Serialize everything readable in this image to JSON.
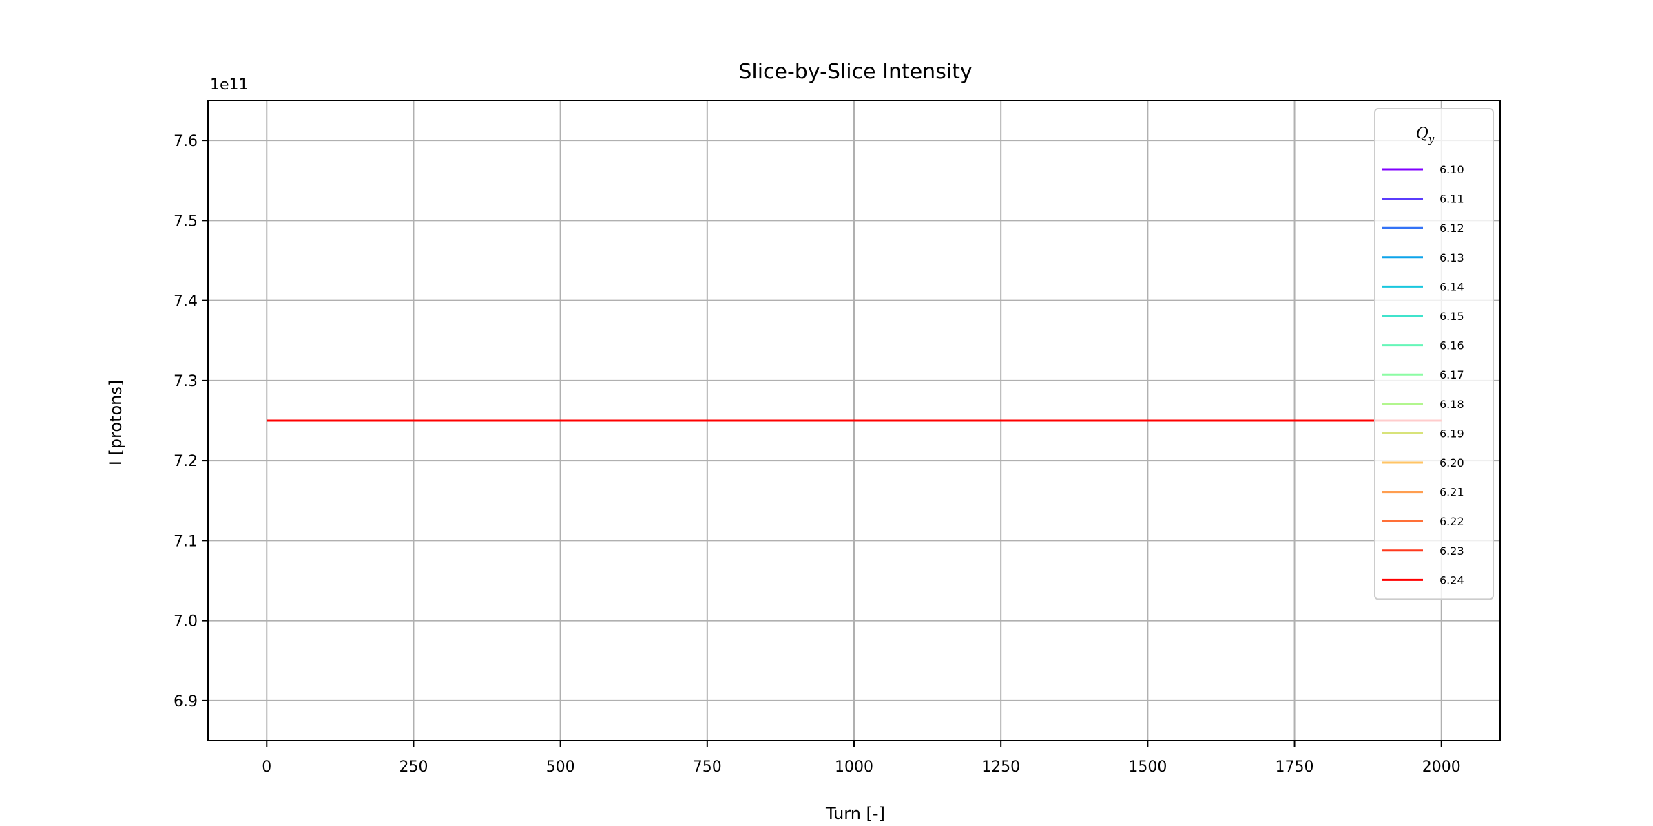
{
  "chart_data": {
    "type": "line",
    "title": "Slice-by-Slice Intensity",
    "xlabel": "Turn [-]",
    "ylabel": "I [protons]",
    "y_offset_label": "1e11",
    "xlim": [
      -100,
      2100
    ],
    "ylim": [
      6.85,
      7.65
    ],
    "xticks": [
      0,
      250,
      500,
      750,
      1000,
      1250,
      1500,
      1750,
      2000
    ],
    "yticks": [
      6.9,
      7.0,
      7.1,
      7.2,
      7.3,
      7.4,
      7.5,
      7.6
    ],
    "ytick_labels": [
      "6.9",
      "7.0",
      "7.1",
      "7.2",
      "7.3",
      "7.4",
      "7.5",
      "7.6"
    ],
    "grid": true,
    "legend": {
      "title_base": "Q",
      "title_sub": "y",
      "placement": "upper right"
    },
    "series": [
      {
        "name": "6.10",
        "color": "#8000ff",
        "x": [
          0,
          2000
        ],
        "y": [
          7.25,
          7.25
        ]
      },
      {
        "name": "6.11",
        "color": "#5a3cfc",
        "x": [
          0,
          2000
        ],
        "y": [
          7.25,
          7.25
        ]
      },
      {
        "name": "6.12",
        "color": "#3473f6",
        "x": [
          0,
          2000
        ],
        "y": [
          7.25,
          7.25
        ]
      },
      {
        "name": "6.13",
        "color": "#0ea4ea",
        "x": [
          0,
          2000
        ],
        "y": [
          7.25,
          7.25
        ]
      },
      {
        "name": "6.14",
        "color": "#1ac7de",
        "x": [
          0,
          2000
        ],
        "y": [
          7.25,
          7.25
        ]
      },
      {
        "name": "6.15",
        "color": "#40e3cc",
        "x": [
          0,
          2000
        ],
        "y": [
          7.25,
          7.25
        ]
      },
      {
        "name": "6.16",
        "color": "#66f6b8",
        "x": [
          0,
          2000
        ],
        "y": [
          7.25,
          7.25
        ]
      },
      {
        "name": "6.17",
        "color": "#8cfca4",
        "x": [
          0,
          2000
        ],
        "y": [
          7.25,
          7.25
        ]
      },
      {
        "name": "6.18",
        "color": "#b2f68e",
        "x": [
          0,
          2000
        ],
        "y": [
          7.25,
          7.25
        ]
      },
      {
        "name": "6.19",
        "color": "#d8e37a",
        "x": [
          0,
          2000
        ],
        "y": [
          7.25,
          7.25
        ]
      },
      {
        "name": "6.20",
        "color": "#ffc466",
        "x": [
          0,
          2000
        ],
        "y": [
          7.25,
          7.25
        ]
      },
      {
        "name": "6.21",
        "color": "#ff9e50",
        "x": [
          0,
          2000
        ],
        "y": [
          7.25,
          7.25
        ]
      },
      {
        "name": "6.22",
        "color": "#ff7038",
        "x": [
          0,
          2000
        ],
        "y": [
          7.25,
          7.25
        ]
      },
      {
        "name": "6.23",
        "color": "#ff3a1e",
        "x": [
          0,
          2000
        ],
        "y": [
          7.25,
          7.25
        ]
      },
      {
        "name": "6.24",
        "color": "#ff0000",
        "x": [
          0,
          2000
        ],
        "y": [
          7.25,
          7.25
        ]
      }
    ]
  }
}
